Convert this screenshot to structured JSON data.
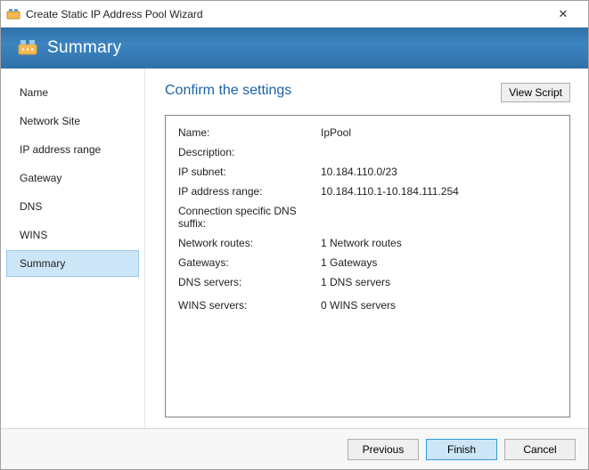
{
  "window": {
    "title": "Create Static IP Address Pool Wizard",
    "close_glyph": "✕"
  },
  "banner": {
    "title": "Summary"
  },
  "sidebar": {
    "items": [
      {
        "label": "Name",
        "selected": false
      },
      {
        "label": "Network Site",
        "selected": false
      },
      {
        "label": "IP address range",
        "selected": false
      },
      {
        "label": "Gateway",
        "selected": false
      },
      {
        "label": "DNS",
        "selected": false
      },
      {
        "label": "WINS",
        "selected": false
      },
      {
        "label": "Summary",
        "selected": true
      }
    ]
  },
  "main": {
    "heading": "Confirm the settings",
    "view_script": "View Script",
    "fields": [
      {
        "label": "Name:",
        "value": "IpPool"
      },
      {
        "label": "Description:",
        "value": ""
      },
      {
        "label": "IP subnet:",
        "value": "10.184.110.0/23"
      },
      {
        "label": "IP address range:",
        "value": "10.184.110.1-10.184.111.254"
      },
      {
        "label": "Connection specific DNS suffix:",
        "value": ""
      },
      {
        "label": "Network routes:",
        "value": "1 Network routes"
      },
      {
        "label": "Gateways:",
        "value": "1 Gateways"
      },
      {
        "label": "DNS servers:",
        "value": "1 DNS servers"
      }
    ],
    "fields2": [
      {
        "label": "WINS servers:",
        "value": "0 WINS servers"
      }
    ]
  },
  "footer": {
    "previous": "Previous",
    "finish": "Finish",
    "cancel": "Cancel"
  }
}
